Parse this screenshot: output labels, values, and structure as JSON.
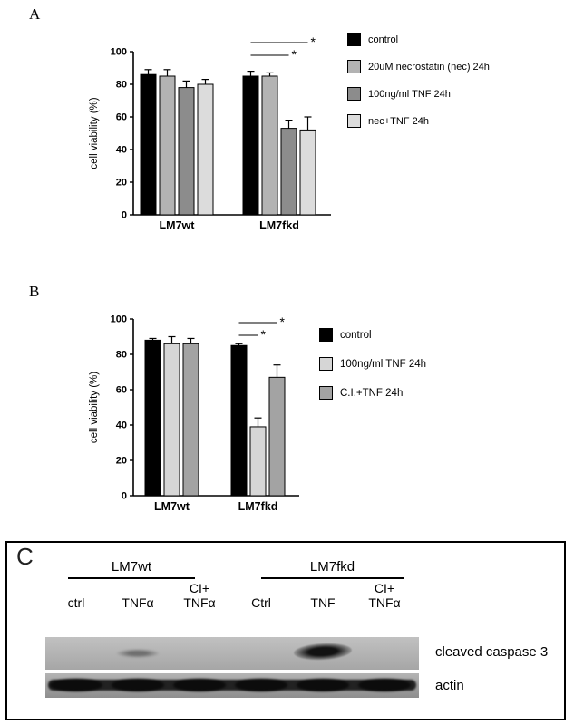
{
  "panels": {
    "a_label": "A",
    "b_label": "B"
  },
  "chart_data": [
    {
      "type": "bar",
      "title": "",
      "categories": [
        "LM7wt",
        "LM7fkd"
      ],
      "series": [
        {
          "name": "control",
          "color": "#000000",
          "values": [
            86,
            85
          ],
          "errors": [
            3,
            3
          ]
        },
        {
          "name": "20uM necrostatin (nec) 24h",
          "color": "#b3b3b3",
          "values": [
            85,
            85
          ],
          "errors": [
            4,
            2
          ]
        },
        {
          "name": "100ng/ml TNF 24h",
          "color": "#8c8c8c",
          "values": [
            78,
            53
          ],
          "errors": [
            4,
            5
          ]
        },
        {
          "name": "nec+TNF 24h",
          "color": "#dcdcdc",
          "values": [
            80,
            52
          ],
          "errors": [
            3,
            8
          ]
        }
      ],
      "xlabel": "",
      "ylabel": "cell viability (%)",
      "ylim": [
        0,
        100
      ],
      "yticks": [
        0,
        20,
        40,
        60,
        80,
        100
      ],
      "grid": false,
      "legend_position": "right",
      "significance": [
        {
          "category": 1,
          "from_series": 0,
          "to_series": 3,
          "row": 0,
          "label": "*"
        },
        {
          "category": 1,
          "from_series": 0,
          "to_series": 2,
          "row": 1,
          "label": "*"
        }
      ]
    },
    {
      "type": "bar",
      "title": "",
      "categories": [
        "LM7wt",
        "LM7fkd"
      ],
      "series": [
        {
          "name": "control",
          "color": "#000000",
          "values": [
            88,
            85
          ],
          "errors": [
            1,
            1
          ]
        },
        {
          "name": "100ng/ml TNF 24h",
          "color": "#d6d6d6",
          "values": [
            86,
            39
          ],
          "errors": [
            4,
            5
          ]
        },
        {
          "name": "C.I.+TNF 24h",
          "color": "#a3a3a3",
          "values": [
            86,
            67
          ],
          "errors": [
            3,
            7
          ]
        }
      ],
      "xlabel": "",
      "ylabel": "cell viability (%)",
      "ylim": [
        0,
        100
      ],
      "yticks": [
        0,
        20,
        40,
        60,
        80,
        100
      ],
      "grid": false,
      "legend_position": "right",
      "significance": [
        {
          "category": 1,
          "from_series": 0,
          "to_series": 2,
          "row": 0,
          "label": "*"
        },
        {
          "category": 1,
          "from_series": 0,
          "to_series": 1,
          "row": 1,
          "label": "*"
        }
      ]
    }
  ],
  "panel_c": {
    "label": "C",
    "groups": [
      {
        "name": "LM7wt",
        "lanes": [
          "ctrl",
          "TNFα",
          "CI+\nTNFα"
        ]
      },
      {
        "name": "LM7fkd",
        "lanes": [
          "Ctrl",
          "TNF",
          "CI+\nTNFα"
        ]
      }
    ],
    "blot_labels": [
      "cleaved caspase 3",
      "actin"
    ]
  }
}
